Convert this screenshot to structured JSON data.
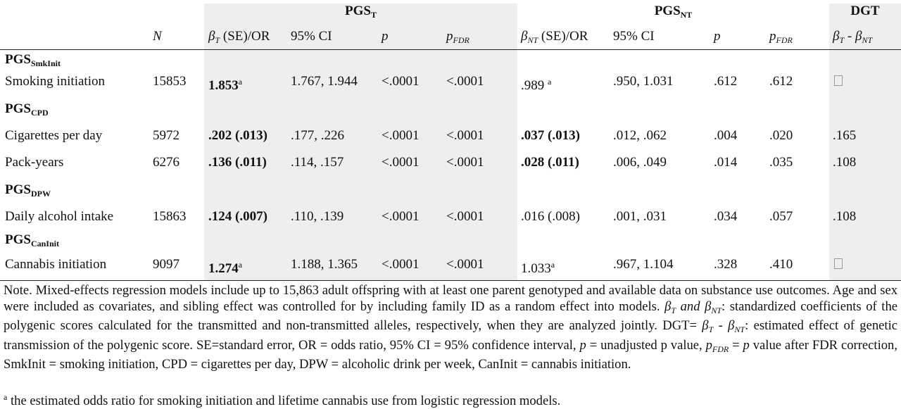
{
  "header": {
    "group_t": {
      "main": "PGS",
      "sub": "T"
    },
    "group_nt": {
      "main": "PGS",
      "sub": "NT"
    },
    "group_dgt": "DGT",
    "col_n": "N",
    "col_beta_t": {
      "sym": "β",
      "sub": "T",
      "rest": " (SE)/OR"
    },
    "col_ci_t": "95% CI",
    "col_p_t": "p",
    "col_pfdr_t": {
      "sym": "p",
      "sub": "FDR"
    },
    "col_beta_nt": {
      "sym": "β",
      "sub": "NT",
      "rest": " (SE)/OR"
    },
    "col_ci_nt": "95% CI",
    "col_p_nt": "p",
    "col_pfdr_nt": {
      "sym": "p",
      "sub": "FDR"
    },
    "col_dgt": {
      "a": "β",
      "a_sub": "T",
      "mid": " - ",
      "b": "β",
      "b_sub": "NT"
    }
  },
  "sections": [
    {
      "label_main": "PGS",
      "label_sub": "SmkInit"
    },
    {
      "label_main": "PGS",
      "label_sub": "CPD"
    },
    {
      "label_main": "PGS",
      "label_sub": "DPW"
    },
    {
      "label_main": "PGS",
      "label_sub": "CanInit"
    }
  ],
  "rows": [
    {
      "outcome": "Smoking initiation",
      "n": "15853",
      "beta_t": "1.853",
      "beta_t_sup": "a",
      "ci_t": "1.767, 1.944",
      "p_t": "<.0001",
      "pfdr_t": "<.0001",
      "beta_nt": ".989 ",
      "beta_nt_sup": "a",
      "ci_nt": ".950, 1.031",
      "p_nt": ".612",
      "pfdr_nt": ".612",
      "dgt": ""
    },
    {
      "outcome": "Cigarettes per day",
      "n": "5972",
      "beta_t": ".202 (.013)",
      "ci_t": ".177, .226",
      "p_t": "<.0001",
      "pfdr_t": "<.0001",
      "beta_nt": ".037 (.013)",
      "ci_nt": ".012, .062",
      "p_nt": ".004",
      "pfdr_nt": ".020",
      "dgt": ".165"
    },
    {
      "outcome": "Pack-years",
      "n": "6276",
      "beta_t": ".136 (.011)",
      "ci_t": ".114, .157",
      "p_t": "<.0001",
      "pfdr_t": "<.0001",
      "beta_nt": ".028 (.011)",
      "ci_nt": ".006, .049",
      "p_nt": ".014",
      "pfdr_nt": ".035",
      "dgt": ".108"
    },
    {
      "outcome": "Daily alcohol intake",
      "n": "15863",
      "beta_t": ".124 (.007)",
      "ci_t": ".110, .139",
      "p_t": "<.0001",
      "pfdr_t": "<.0001",
      "beta_nt": ".016 (.008)",
      "ci_nt": ".001, .031",
      "p_nt": ".034",
      "pfdr_nt": ".057",
      "dgt": ".108"
    },
    {
      "outcome": "Cannabis initiation",
      "n": "9097",
      "beta_t": "1.274",
      "beta_t_sup": "a",
      "ci_t": "1.188, 1.365",
      "p_t": "<.0001",
      "pfdr_t": "<.0001",
      "beta_nt": "1.033",
      "beta_nt_sup": "a",
      "ci_nt": ".967, 1.104",
      "p_nt": ".328",
      "pfdr_nt": ".410",
      "dgt": ""
    }
  ],
  "note": {
    "p1": "Note. Mixed-effects regression models include up to 15,863 adult offspring with at least one parent genotyped and available data on substance use outcomes. Age and sex were included as covariates, and sibling effect was controlled for by including family ID as a random effect into models. ",
    "b_t": "β",
    "b_t_sub": "T",
    "and": " and ",
    "b_nt": "β",
    "b_nt_sub": "NT",
    "p2": ": standardized coefficients of the polygenic scores calculated for the transmitted and non-transmitted alleles, respectively, when they are analyzed jointly. DGT= ",
    "d1": "β",
    "d1_sub": "T",
    "dmid": " - ",
    "d2": "β",
    "d2_sub": "NT",
    "p3": ": estimated effect of genetic transmission of the polygenic score. SE=standard error, OR = odds ratio, 95% CI = 95% confidence interval, ",
    "pvar": "p",
    "p4": " = unadjusted p value, ",
    "pfdr": "p",
    "pfdr_sub": "FDR",
    "p5": " = ",
    "pvar2": "p",
    "p6": " value after FDR correction, SmkInit = smoking initiation, CPD = cigarettes per day, DPW = alcoholic drink per week, CanInit = cannabis initiation."
  },
  "footnote": {
    "sup": "a",
    "text": " the estimated odds ratio for smoking initiation and lifetime cannabis use from logistic regression models."
  }
}
